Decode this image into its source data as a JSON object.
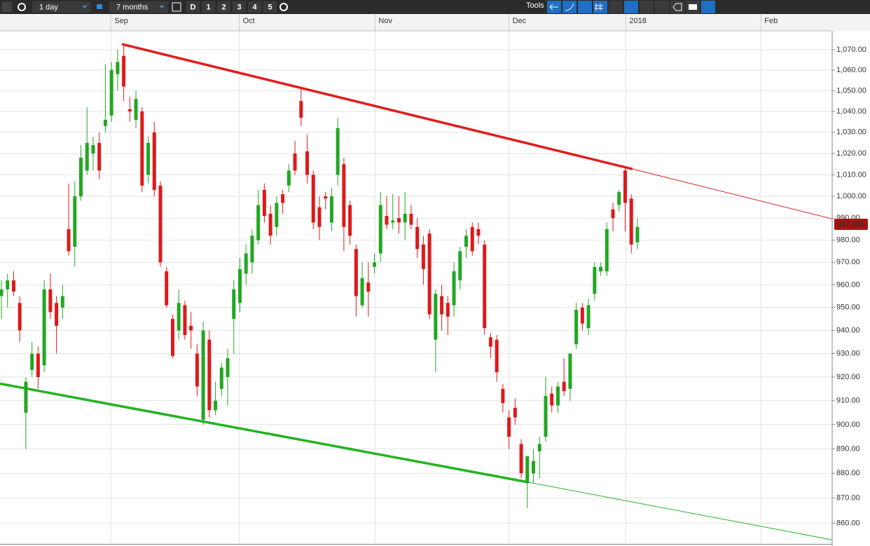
{
  "toolbar": {
    "interval": "1 day",
    "range": "7 months",
    "buttons": [
      "D",
      "1",
      "2",
      "3",
      "4",
      "5"
    ],
    "tools": "Tools"
  },
  "chart_data": {
    "type": "candlestick",
    "log_scale": true,
    "grid": true,
    "up_color": "#22a722",
    "down_color": "#dd1a1a",
    "xlim": [
      -0.23,
      135.85
    ],
    "ylim": [
      851.8,
      1079.4
    ],
    "xticks": [
      {
        "value": 17.9,
        "label": "Sep"
      },
      {
        "value": 38.9,
        "label": "Oct"
      },
      {
        "value": 61.1,
        "label": "Nov"
      },
      {
        "value": 83.0,
        "label": "Dec"
      },
      {
        "value": 102.1,
        "label": "2018"
      },
      {
        "value": 124.2,
        "label": "Feb"
      }
    ],
    "yticks": [
      {
        "value": 860,
        "label": "860.00"
      },
      {
        "value": 870,
        "label": "870.00"
      },
      {
        "value": 880,
        "label": "880.00"
      },
      {
        "value": 890,
        "label": "890.00"
      },
      {
        "value": 900,
        "label": "900.00"
      },
      {
        "value": 910,
        "label": "910.00"
      },
      {
        "value": 920,
        "label": "920.00"
      },
      {
        "value": 930,
        "label": "930.00"
      },
      {
        "value": 940,
        "label": "940.00"
      },
      {
        "value": 950,
        "label": "950.00"
      },
      {
        "value": 960,
        "label": "960.00"
      },
      {
        "value": 970,
        "label": "970.00"
      },
      {
        "value": 980,
        "label": "980.00"
      },
      {
        "value": 990,
        "label": "990.00"
      },
      {
        "value": 1000,
        "label": "1,000.00"
      },
      {
        "value": 1010,
        "label": "1,010.00"
      },
      {
        "value": 1020,
        "label": "1,020.00"
      },
      {
        "value": 1030,
        "label": "1,030.00"
      },
      {
        "value": 1040,
        "label": "1,040.00"
      },
      {
        "value": 1050,
        "label": "1,050.00"
      },
      {
        "value": 1060,
        "label": "1,060.00"
      },
      {
        "value": 1070,
        "label": "1,070.00"
      }
    ],
    "last_price": {
      "value": 987.2,
      "label": "987.200",
      "color": "#b30d0d"
    },
    "trendlines": [
      {
        "color": "#e01e1e",
        "points": [
          [
            19.7,
            1072.8
          ],
          [
            103.2,
            1012.7
          ],
          [
            135.85,
            989.7
          ]
        ]
      },
      {
        "color": "#22b422",
        "points": [
          [
            -0.23,
            917.2
          ],
          [
            85.9,
            876.5
          ],
          [
            135.85,
            853.4
          ]
        ]
      }
    ],
    "ohlc": [
      [
        955,
        962,
        945,
        958
      ],
      [
        958,
        965,
        950,
        962
      ],
      [
        962,
        966,
        955,
        957
      ],
      [
        952,
        955,
        935,
        940
      ],
      [
        905,
        920,
        890,
        918
      ],
      [
        923,
        935,
        920,
        930
      ],
      [
        930,
        933,
        915,
        920
      ],
      [
        925,
        962,
        922,
        958
      ],
      [
        958,
        965,
        945,
        948
      ],
      [
        952,
        955,
        930,
        942
      ],
      [
        950,
        960,
        945,
        955
      ],
      [
        985,
        1006,
        973,
        975
      ],
      [
        977,
        1007,
        968,
        1000
      ],
      [
        1000,
        1024,
        998,
        1018
      ],
      [
        1012,
        1042,
        1010,
        1025
      ],
      [
        1020,
        1028,
        1012,
        1024
      ],
      [
        1025,
        1030,
        1008,
        1012
      ],
      [
        1033,
        1063,
        1030,
        1036
      ],
      [
        1038,
        1064,
        1035,
        1060
      ],
      [
        1058,
        1070,
        1050,
        1064
      ],
      [
        1067,
        1072,
        1045,
        1052
      ],
      [
        1041,
        1047,
        1035,
        1040
      ],
      [
        1036,
        1050,
        1032,
        1046
      ],
      [
        1040,
        1042,
        1002,
        1005
      ],
      [
        1010,
        1028,
        1006,
        1025
      ],
      [
        1030,
        1035,
        1000,
        1003
      ],
      [
        1005,
        1007,
        968,
        970
      ],
      [
        966,
        968,
        950,
        951
      ],
      [
        945,
        947,
        928,
        929
      ],
      [
        940,
        958,
        936,
        952
      ],
      [
        951,
        953,
        936,
        938
      ],
      [
        942,
        948,
        932,
        940
      ],
      [
        930,
        934,
        912,
        916
      ],
      [
        902,
        944,
        900,
        940
      ],
      [
        936,
        940,
        903,
        906
      ],
      [
        906,
        918,
        904,
        910
      ],
      [
        915,
        926,
        912,
        924
      ],
      [
        920,
        932,
        908,
        928
      ],
      [
        945,
        962,
        930,
        958
      ],
      [
        952,
        972,
        948,
        967
      ],
      [
        965,
        978,
        960,
        974
      ],
      [
        970,
        985,
        965,
        982
      ],
      [
        980,
        1003,
        978,
        996
      ],
      [
        1003,
        1006,
        988,
        991
      ],
      [
        992,
        996,
        978,
        982
      ],
      [
        986,
        1000,
        982,
        997
      ],
      [
        1001,
        1003,
        992,
        997
      ],
      [
        1005,
        1015,
        1002,
        1012
      ],
      [
        1020,
        1026,
        1010,
        1012
      ],
      [
        1045,
        1052,
        1033,
        1037
      ],
      [
        1021,
        1029,
        1006,
        1010
      ],
      [
        1010,
        1012,
        985,
        988
      ],
      [
        995,
        1000,
        980,
        986
      ],
      [
        1000,
        1002,
        994,
        999
      ],
      [
        988,
        1004,
        984,
        1000
      ],
      [
        1010,
        1037,
        1005,
        1032
      ],
      [
        1015,
        1018,
        975,
        986
      ],
      [
        996,
        998,
        978,
        982
      ],
      [
        976,
        978,
        946,
        955
      ],
      [
        951,
        970,
        950,
        963
      ],
      [
        961,
        970,
        946,
        957
      ],
      [
        968,
        974,
        965,
        970
      ],
      [
        974,
        1002,
        970,
        996
      ],
      [
        991,
        1000,
        985,
        987
      ],
      [
        988,
        1001,
        985,
        989
      ],
      [
        990,
        1000,
        983,
        988
      ],
      [
        988,
        1002,
        980,
        992
      ],
      [
        992,
        996,
        985,
        987
      ],
      [
        986,
        990,
        972,
        976
      ],
      [
        978,
        982,
        960,
        967
      ],
      [
        983,
        985,
        945,
        947
      ],
      [
        936,
        958,
        922,
        956
      ],
      [
        955,
        960,
        940,
        947
      ],
      [
        952,
        955,
        938,
        946
      ],
      [
        951,
        970,
        946,
        966
      ],
      [
        962,
        977,
        958,
        975
      ],
      [
        977,
        985,
        972,
        982
      ],
      [
        986,
        988,
        973,
        975
      ],
      [
        985,
        988,
        978,
        982
      ],
      [
        978,
        980,
        938,
        941
      ],
      [
        937,
        939,
        928,
        933
      ],
      [
        936,
        938,
        918,
        922
      ],
      [
        915,
        917,
        905,
        909
      ],
      [
        903,
        906,
        890,
        895
      ],
      [
        907,
        911,
        900,
        903
      ],
      [
        892,
        894,
        878,
        880
      ],
      [
        876,
        887,
        866,
        887
      ],
      [
        880,
        890,
        876,
        885
      ],
      [
        889,
        895,
        878,
        892
      ],
      [
        895,
        920,
        893,
        912
      ],
      [
        913,
        916,
        905,
        908
      ],
      [
        908,
        918,
        905,
        916
      ],
      [
        918,
        928,
        912,
        914
      ],
      [
        915,
        930,
        910,
        930
      ],
      [
        934,
        952,
        932,
        949
      ],
      [
        950,
        952,
        940,
        943
      ],
      [
        941,
        954,
        938,
        951
      ],
      [
        956,
        970,
        953,
        968
      ],
      [
        966,
        970,
        964,
        968
      ],
      [
        966,
        988,
        964,
        985
      ],
      [
        994,
        997,
        984,
        990
      ],
      [
        996,
        1003,
        993,
        1002
      ],
      [
        1012,
        1014,
        984,
        997
      ],
      [
        999,
        1001,
        974,
        978
      ],
      [
        979,
        990,
        976,
        986
      ]
    ]
  }
}
